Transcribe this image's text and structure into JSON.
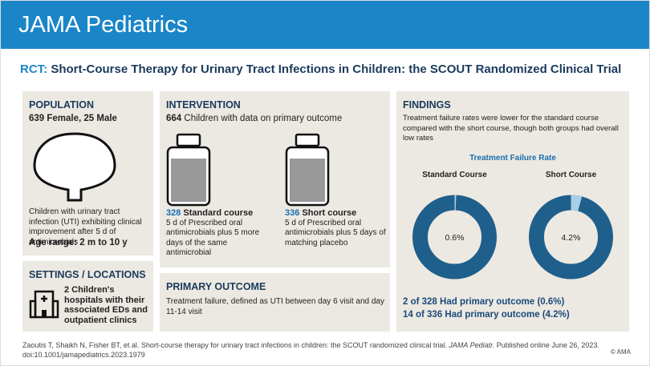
{
  "header": {
    "journal": "JAMA Pediatrics"
  },
  "title": {
    "prefix": "RCT:",
    "text": "Short-Course Therapy for Urinary Tract Infections in Children: the SCOUT Randomized Clinical Trial"
  },
  "population": {
    "heading": "POPULATION",
    "counts": "639 Female, 25 Male",
    "description": "Children with urinary tract infection (UTI) exhibiting clinical improvement after 5 d of antimicrobials",
    "age": "Age range: 2 m to 10 y"
  },
  "settings": {
    "heading": "SETTINGS / LOCATIONS",
    "text": "2 Children's hospitals with their associated EDs and outpatient clinics"
  },
  "intervention": {
    "heading": "INTERVENTION",
    "total_number": "664",
    "total_text": "Children with data on primary outcome",
    "arms": [
      {
        "number": "328",
        "name": "Standard course",
        "description": "5 d of Prescribed oral antimicrobials plus 5 more days of the same antimicrobial"
      },
      {
        "number": "336",
        "name": "Short course",
        "description": "5 d of Prescribed oral antimicrobials plus 5 days of matching placebo"
      }
    ]
  },
  "primary_outcome": {
    "heading": "PRIMARY OUTCOME",
    "text": "Treatment failure, defined as UTI between day 6 visit and day 11-14 visit"
  },
  "findings": {
    "heading": "FINDINGS",
    "summary": "Treatment failure rates were lower for the standard course compared with the short course, though both groups had overall low rates",
    "chart": {
      "type": "donut",
      "title": "Treatment Failure Rate",
      "series": [
        {
          "name": "Standard Course",
          "value": 0.6,
          "label": "0.6%"
        },
        {
          "name": "Short Course",
          "value": 4.2,
          "label": "4.2%"
        }
      ]
    },
    "results": [
      "2 of 328 Had primary outcome (0.6%)",
      "14 of 336 Had primary outcome (4.2%)"
    ]
  },
  "footer": {
    "citation": "Zaoutis T, Shaikh N, Fisher BT, et al. Short-course therapy for urinary tract infections in children: the SCOUT randomized clinical trial.",
    "journal": "JAMA Pediatr.",
    "published": "Published online June 26, 2023.",
    "doi": "doi:10.1001/jamapediatrics.2023.1979",
    "copyright": "© AMA"
  }
}
